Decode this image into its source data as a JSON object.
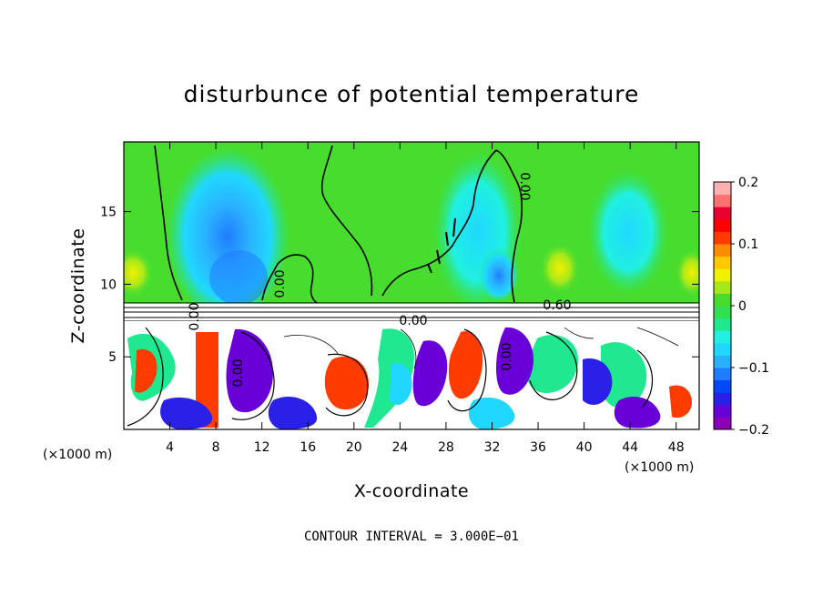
{
  "chart_data": {
    "type": "heatmap",
    "title": "disturbunce of potential temperature",
    "xlabel": "X-coordinate",
    "ylabel": "Z-coordinate",
    "x_unit": "(×1000 m)",
    "y_unit": "(×1000 m)",
    "x_ticks": [
      4,
      8,
      12,
      16,
      20,
      24,
      28,
      32,
      36,
      40,
      44,
      48
    ],
    "y_ticks": [
      5,
      10,
      15
    ],
    "xlim": [
      0,
      50
    ],
    "ylim": [
      0,
      19.8
    ],
    "colorbar": {
      "min": -0.2,
      "max": 0.2,
      "tick_values": [
        0.2,
        0.1,
        0,
        -0.1,
        -0.2
      ],
      "tick_labels": [
        "0.2",
        "0.1",
        "0",
        "−0.1",
        "−0.2"
      ],
      "colors": [
        "#8b00b5",
        "#6a00d8",
        "#2a20e8",
        "#0048ff",
        "#1f7cff",
        "#2ab0ff",
        "#20d8ff",
        "#20f0e0",
        "#20e890",
        "#30e050",
        "#48dd2e",
        "#a8e81a",
        "#f0f000",
        "#ffc800",
        "#ff8c00",
        "#ff3c00",
        "#ff0000",
        "#e80030",
        "#ff7070",
        "#ffb0b0"
      ]
    },
    "contour_labels": [
      "0.00",
      "0.00",
      "0.00",
      "0.60",
      "0.00",
      "0.00",
      "0.00"
    ],
    "footer": "CONTOUR INTERVAL = 3.000E−01",
    "cell_colors": {
      "upper_background": "#48dd2e",
      "upper_anomaly": "#2ab0ff",
      "upper_weak": "#20f0e0",
      "upper_warm": "#f0f000",
      "band": "#ffffff",
      "lower_warm": "#ff3c00",
      "lower_cold": "#6a00d8",
      "lower_mid": "#20e890"
    }
  }
}
